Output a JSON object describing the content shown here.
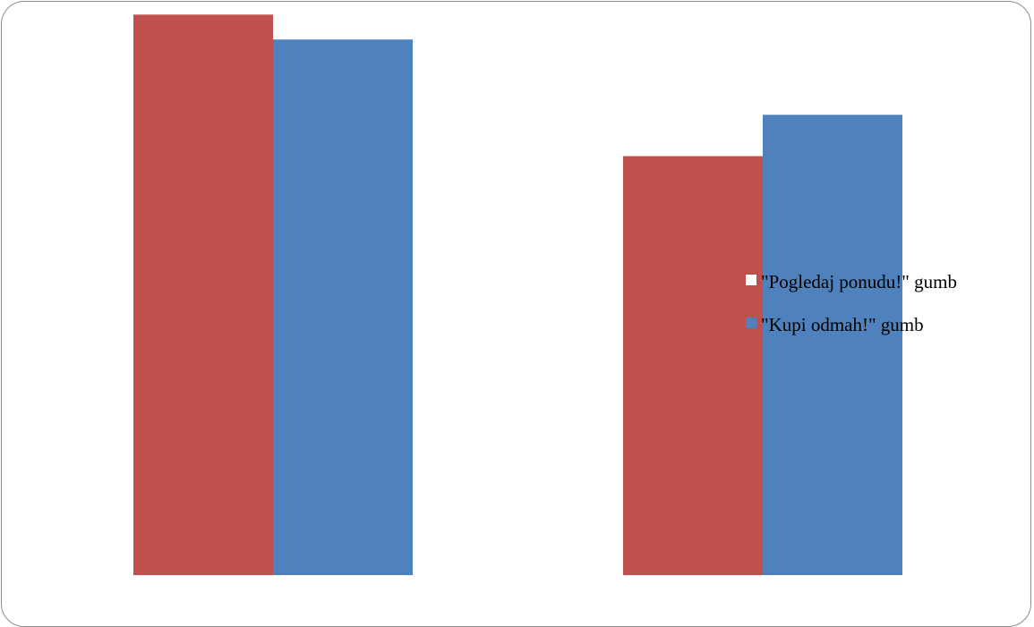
{
  "chart_data": {
    "type": "bar",
    "categories": [
      "",
      ""
    ],
    "series": [
      {
        "name": "\"Pogledaj ponudu!\" gumb",
        "color": "#C0504D",
        "values": [
          99,
          74
        ]
      },
      {
        "name": "\"Kupi odmah!\" gumb",
        "color": "#4F81BD",
        "values": [
          94.6,
          81.3
        ]
      }
    ],
    "ylim": [
      0,
      100
    ],
    "grid": false,
    "legend_position": "right",
    "title": "",
    "xlabel": "",
    "ylabel": ""
  }
}
